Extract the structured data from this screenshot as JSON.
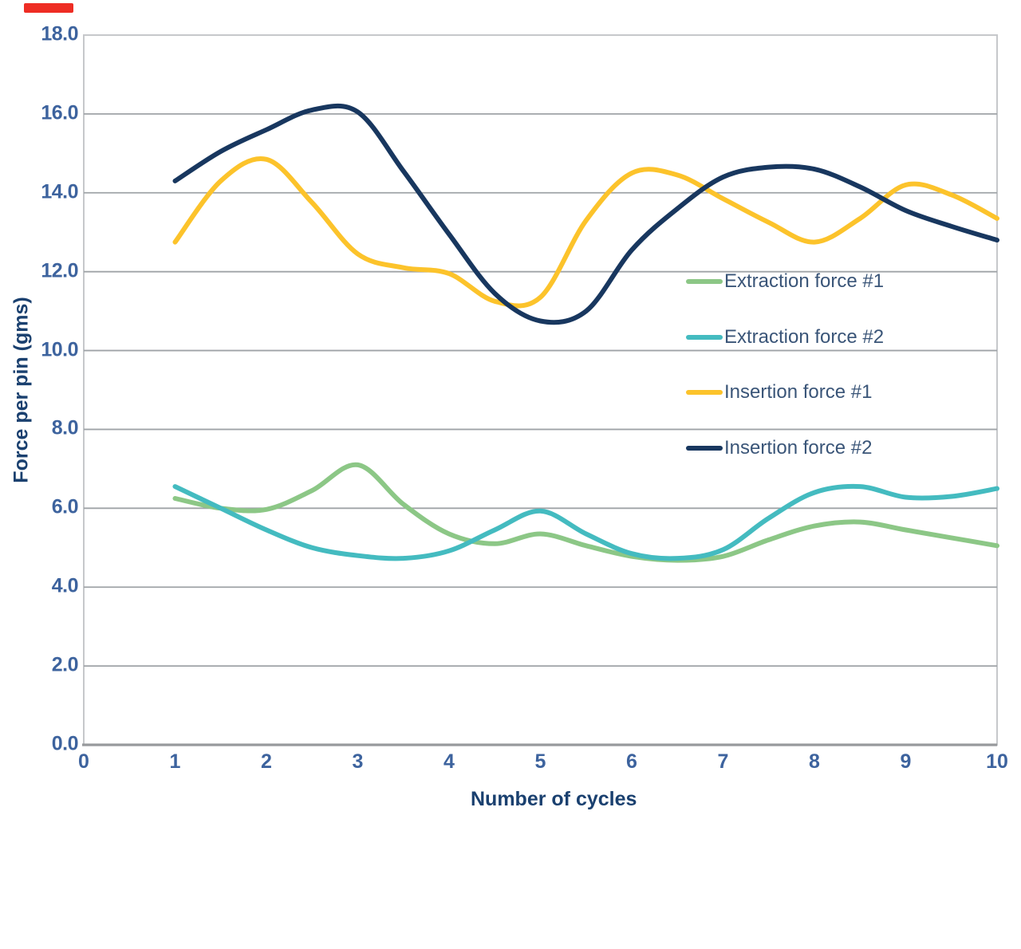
{
  "page": {
    "background": "#FFFFFF"
  },
  "decorations": {
    "top_left_marker_color": "#EE2D24"
  },
  "colors": {
    "tick_label": "#3D639E",
    "axis_title": "#1A406F",
    "legend_text": "#3A5578",
    "gridline": "#9FA3A7",
    "plot_border": "#C6C8CB",
    "bottom_axis": "#97999C",
    "extraction_1": "#8CC786",
    "extraction_2": "#44BBC0",
    "insertion_1": "#FCC32B",
    "insertion_2": "#18375F"
  },
  "chart_data": {
    "type": "line",
    "title": "",
    "xlabel": "Number of cycles",
    "ylabel": "Force per pin (gms)",
    "xlim": [
      0,
      10
    ],
    "ylim": [
      0,
      18
    ],
    "grid": "horizontal",
    "legend_position": "inside-right-middle",
    "xticks": {
      "values": [
        0,
        1,
        2,
        3,
        4,
        5,
        6,
        7,
        8,
        9,
        10
      ],
      "labels": [
        "0",
        "1",
        "2",
        "3",
        "4",
        "5",
        "6",
        "7",
        "8",
        "9",
        "10"
      ]
    },
    "yticks": {
      "values": [
        0,
        2,
        4,
        6,
        8,
        10,
        12,
        14,
        16,
        18
      ],
      "labels": [
        "0.0",
        "2.0",
        "4.0",
        "6.0",
        "8.0",
        "10.0",
        "12.0",
        "14.0",
        "16.0",
        "18.0"
      ]
    },
    "x": [
      1,
      1.5,
      2,
      2.5,
      3,
      3.5,
      4,
      4.5,
      5,
      5.5,
      6,
      6.5,
      7,
      7.5,
      8,
      8.5,
      9,
      9.5,
      10
    ],
    "series": [
      {
        "name": "Extraction force #1",
        "color": "#8CC786",
        "values": [
          6.25,
          6.0,
          5.97,
          6.45,
          7.1,
          6.1,
          5.35,
          5.1,
          5.35,
          5.05,
          4.78,
          4.68,
          4.78,
          5.2,
          5.55,
          5.65,
          5.45,
          5.25,
          5.05
        ]
      },
      {
        "name": "Extraction force #2",
        "color": "#44BBC0",
        "values": [
          6.55,
          6.0,
          5.45,
          5.0,
          4.8,
          4.73,
          4.92,
          5.45,
          5.93,
          5.35,
          4.85,
          4.73,
          4.95,
          5.75,
          6.4,
          6.55,
          6.28,
          6.3,
          6.5
        ]
      },
      {
        "name": "Insertion force #1",
        "color": "#FCC32B",
        "values": [
          12.75,
          14.3,
          14.85,
          13.75,
          12.45,
          12.1,
          11.95,
          11.25,
          11.35,
          13.3,
          14.5,
          14.45,
          13.85,
          13.25,
          12.75,
          13.35,
          14.2,
          13.95,
          13.35
        ]
      },
      {
        "name": "Insertion force #2",
        "color": "#18375F",
        "values": [
          14.3,
          15.05,
          15.6,
          16.1,
          16.05,
          14.55,
          12.95,
          11.45,
          10.75,
          11.0,
          12.55,
          13.6,
          14.4,
          14.65,
          14.6,
          14.15,
          13.55,
          13.15,
          12.8
        ]
      }
    ]
  }
}
